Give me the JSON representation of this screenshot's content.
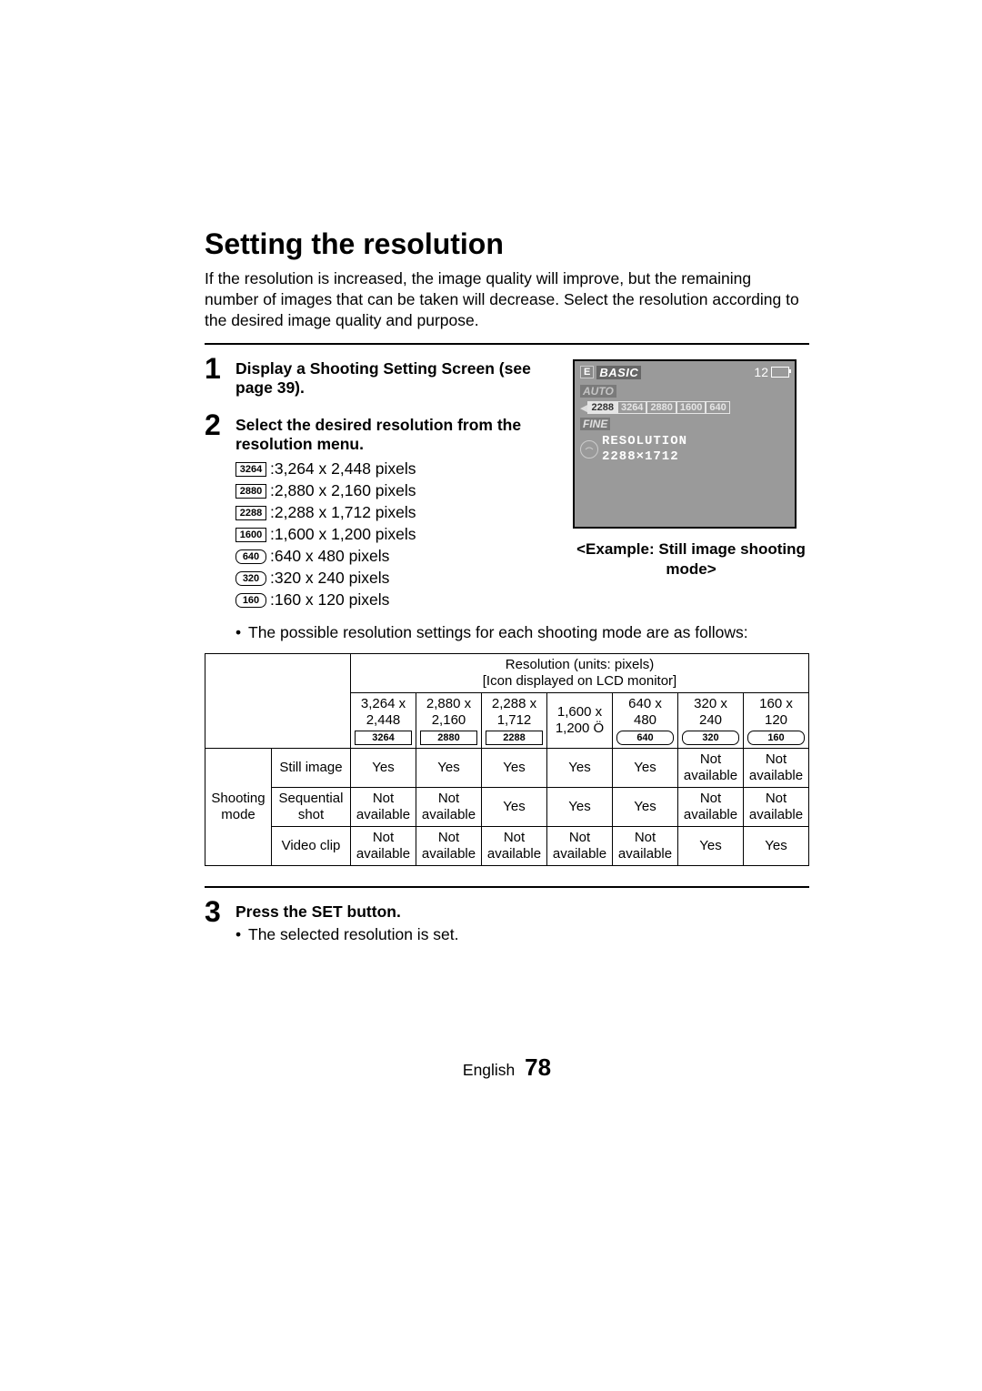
{
  "title": "Setting the resolution",
  "intro": "If the resolution is increased, the image quality will improve, but the remaining number of images that can be taken will decrease. Select the resolution according to the desired image quality and purpose.",
  "steps": {
    "s1": {
      "num": "1",
      "text": "Display a Shooting Setting Screen (see page 39)."
    },
    "s2": {
      "num": "2",
      "text": "Select the desired resolution from the resolution menu."
    },
    "s3": {
      "num": "3",
      "text": "Press the SET button.",
      "sub": "The selected resolution is set."
    }
  },
  "res_options": [
    {
      "icon": "3264",
      "rounded": false,
      "label": "3,264 x 2,448 pixels"
    },
    {
      "icon": "2880",
      "rounded": false,
      "label": "2,880 x 2,160 pixels"
    },
    {
      "icon": "2288",
      "rounded": false,
      "label": "2,288 x 1,712 pixels"
    },
    {
      "icon": "1600",
      "rounded": false,
      "label": "1,600 x 1,200 pixels"
    },
    {
      "icon": "640",
      "rounded": true,
      "label": "640 x 480 pixels"
    },
    {
      "icon": "320",
      "rounded": true,
      "label": "320 x 240 pixels"
    },
    {
      "icon": "160",
      "rounded": true,
      "label": "160 x 120 pixels"
    }
  ],
  "bullet_after_list": "The possible resolution settings for each shooting mode are as follows:",
  "lcd": {
    "e": "E",
    "basic": "BASIC",
    "count": "12",
    "auto": "AUTO",
    "chips": [
      "2288",
      "3264",
      "2880",
      "1600",
      "640"
    ],
    "fine": "FINE",
    "res_line1": "RESOLUTION",
    "res_line2": "2288×1712",
    "caption": "<Example: Still image shooting mode>"
  },
  "table": {
    "super_header": "Resolution (units: pixels)\n[Icon displayed on LCD monitor]",
    "col_heads": [
      {
        "l1": "3,264 x",
        "l2": "2,448",
        "icon": "3264",
        "rounded": false
      },
      {
        "l1": "2,880 x",
        "l2": "2,160",
        "icon": "2880",
        "rounded": false
      },
      {
        "l1": "2,288 x",
        "l2": "1,712",
        "icon": "2288",
        "rounded": false
      },
      {
        "l1": "1,600 x",
        "l2": "1,200 Ö",
        "icon": "",
        "rounded": false
      },
      {
        "l1": "640 x",
        "l2": "480",
        "icon": "640",
        "rounded": true
      },
      {
        "l1": "320 x",
        "l2": "240",
        "icon": "320",
        "rounded": true
      },
      {
        "l1": "160 x",
        "l2": "120",
        "icon": "160",
        "rounded": true
      }
    ],
    "row_group_label": "Shooting mode",
    "rows": [
      {
        "label": "Still image",
        "cells": [
          "Yes",
          "Yes",
          "Yes",
          "Yes",
          "Yes",
          "Not available",
          "Not available"
        ]
      },
      {
        "label": "Sequential shot",
        "cells": [
          "Not available",
          "Not available",
          "Yes",
          "Yes",
          "Yes",
          "Not available",
          "Not available"
        ]
      },
      {
        "label": "Video clip",
        "cells": [
          "Not available",
          "Not available",
          "Not available",
          "Not available",
          "Not available",
          "Yes",
          "Yes"
        ]
      }
    ]
  },
  "footer": {
    "lang": "English",
    "page": "78"
  }
}
